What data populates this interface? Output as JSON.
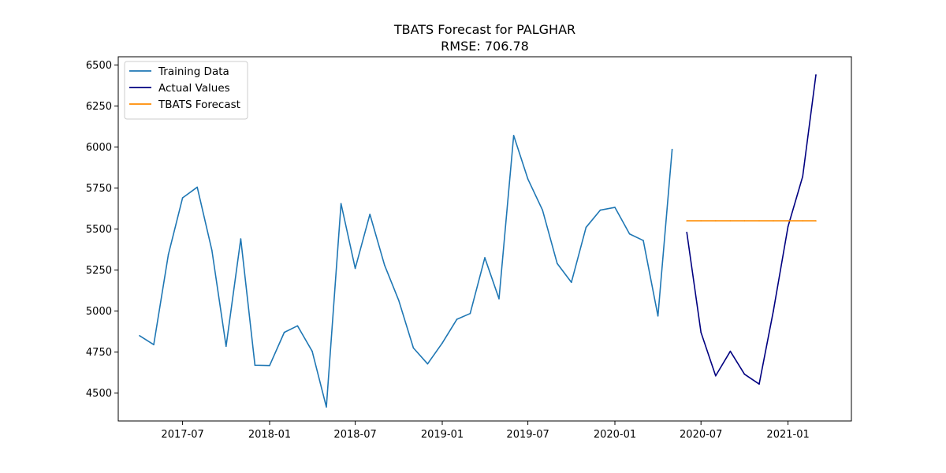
{
  "chart_data": {
    "type": "line",
    "title": "TBATS Forecast for PALGHAR",
    "subtitle": "RMSE: 706.78",
    "xlabel": "",
    "ylabel": "",
    "ylim": [
      4330,
      6550
    ],
    "xlim": [
      "2017-02-15",
      "2021-05-15"
    ],
    "x_ticks": [
      "2017-07",
      "2018-01",
      "2018-07",
      "2019-01",
      "2019-07",
      "2020-01",
      "2020-07",
      "2021-01"
    ],
    "y_ticks": [
      4500,
      4750,
      5000,
      5250,
      5500,
      5750,
      6000,
      6250,
      6500
    ],
    "grid": false,
    "legend_position": "top-left",
    "series": [
      {
        "name": "Training Data",
        "color": "#1f77b4",
        "points": [
          [
            "2017-04",
            4850
          ],
          [
            "2017-05",
            4795
          ],
          [
            "2017-06",
            5345
          ],
          [
            "2017-07",
            5690
          ],
          [
            "2017-08",
            5755
          ],
          [
            "2017-09",
            5370
          ],
          [
            "2017-10",
            4785
          ],
          [
            "2017-11",
            5440
          ],
          [
            "2017-12",
            4670
          ],
          [
            "2018-01",
            4668
          ],
          [
            "2018-02",
            4870
          ],
          [
            "2018-03",
            4910
          ],
          [
            "2018-04",
            4755
          ],
          [
            "2018-05",
            4415
          ],
          [
            "2018-06",
            5655
          ],
          [
            "2018-07",
            5260
          ],
          [
            "2018-08",
            5590
          ],
          [
            "2018-09",
            5280
          ],
          [
            "2018-10",
            5065
          ],
          [
            "2018-11",
            4775
          ],
          [
            "2018-12",
            4678
          ],
          [
            "2019-01",
            4805
          ],
          [
            "2019-02",
            4950
          ],
          [
            "2019-03",
            4985
          ],
          [
            "2019-04",
            5325
          ],
          [
            "2019-05",
            5075
          ],
          [
            "2019-06",
            6070
          ],
          [
            "2019-07",
            5805
          ],
          [
            "2019-08",
            5615
          ],
          [
            "2019-09",
            5290
          ],
          [
            "2019-10",
            5175
          ],
          [
            "2019-11",
            5510
          ],
          [
            "2019-12",
            5615
          ],
          [
            "2020-01",
            5632
          ],
          [
            "2020-02",
            5470
          ],
          [
            "2020-03",
            5430
          ],
          [
            "2020-04",
            4970
          ],
          [
            "2020-05",
            5985
          ]
        ]
      },
      {
        "name": "Actual Values",
        "color": "#000080",
        "points": [
          [
            "2020-06",
            5480
          ],
          [
            "2020-07",
            4870
          ],
          [
            "2020-08",
            4605
          ],
          [
            "2020-09",
            4755
          ],
          [
            "2020-10",
            4615
          ],
          [
            "2020-11",
            4555
          ],
          [
            "2020-12",
            5000
          ],
          [
            "2021-01",
            5515
          ],
          [
            "2021-02",
            5820
          ],
          [
            "2021-03",
            6440
          ]
        ]
      },
      {
        "name": "TBATS Forecast",
        "color": "#ff8c00",
        "points": [
          [
            "2020-06",
            5550
          ],
          [
            "2020-07",
            5550
          ],
          [
            "2020-08",
            5550
          ],
          [
            "2020-09",
            5550
          ],
          [
            "2020-10",
            5550
          ],
          [
            "2020-11",
            5550
          ],
          [
            "2020-12",
            5550
          ],
          [
            "2021-01",
            5550
          ],
          [
            "2021-02",
            5550
          ],
          [
            "2021-03",
            5550
          ]
        ]
      }
    ]
  }
}
